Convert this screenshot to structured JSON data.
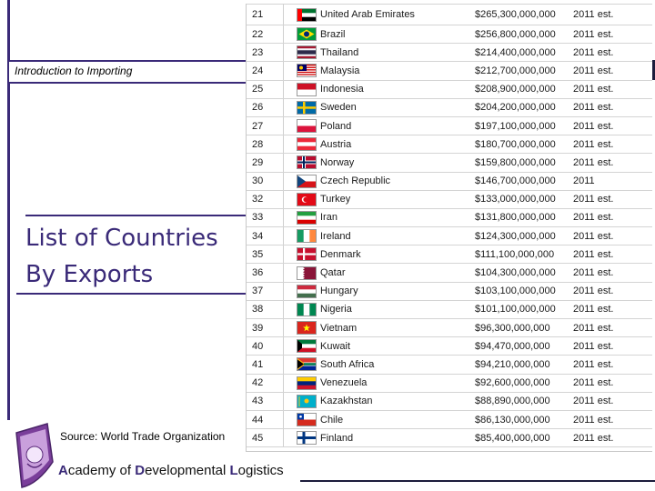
{
  "header": {
    "section_label": "Introduction to Importing"
  },
  "slide": {
    "title_line1": "List of Countries",
    "title_line2": "By Exports",
    "source": "Source: World Trade Organization"
  },
  "footer": {
    "a": "A",
    "cademy": "cademy of ",
    "d": "D",
    "evelopmental": "evelopmental ",
    "l": "L",
    "ogistics": "ogistics"
  },
  "rows": [
    {
      "rank": "21",
      "country": "United Arab Emirates",
      "value": "$265,300,000,000",
      "year": "2011 est.",
      "flag_icon": "uae-flag-icon"
    },
    {
      "rank": "22",
      "country": "Brazil",
      "value": "$256,800,000,000",
      "year": "2011 est.",
      "flag_icon": "brazil-flag-icon"
    },
    {
      "rank": "23",
      "country": "Thailand",
      "value": "$214,400,000,000",
      "year": "2011 est.",
      "flag_icon": "thailand-flag-icon"
    },
    {
      "rank": "24",
      "country": "Malaysia",
      "value": "$212,700,000,000",
      "year": "2011 est.",
      "flag_icon": "malaysia-flag-icon"
    },
    {
      "rank": "25",
      "country": "Indonesia",
      "value": "$208,900,000,000",
      "year": "2011 est.",
      "flag_icon": "indonesia-flag-icon"
    },
    {
      "rank": "26",
      "country": "Sweden",
      "value": "$204,200,000,000",
      "year": "2011 est.",
      "flag_icon": "sweden-flag-icon"
    },
    {
      "rank": "27",
      "country": "Poland",
      "value": "$197,100,000,000",
      "year": "2011 est.",
      "flag_icon": "poland-flag-icon"
    },
    {
      "rank": "28",
      "country": "Austria",
      "value": "$180,700,000,000",
      "year": "2011 est.",
      "flag_icon": "austria-flag-icon"
    },
    {
      "rank": "29",
      "country": "Norway",
      "value": "$159,800,000,000",
      "year": "2011 est.",
      "flag_icon": "norway-flag-icon"
    },
    {
      "rank": "30",
      "country": "Czech Republic",
      "value": "$146,700,000,000",
      "year": "2011",
      "flag_icon": "czech-flag-icon"
    },
    {
      "rank": "32",
      "country": "Turkey",
      "value": "$133,000,000,000",
      "year": "2011 est.",
      "flag_icon": "turkey-flag-icon"
    },
    {
      "rank": "33",
      "country": "Iran",
      "value": "$131,800,000,000",
      "year": "2011 est.",
      "flag_icon": "iran-flag-icon"
    },
    {
      "rank": "34",
      "country": "Ireland",
      "value": "$124,300,000,000",
      "year": "2011 est.",
      "flag_icon": "ireland-flag-icon"
    },
    {
      "rank": "35",
      "country": "Denmark",
      "value": "$111,100,000,000",
      "year": "2011 est.",
      "flag_icon": "denmark-flag-icon"
    },
    {
      "rank": "36",
      "country": "Qatar",
      "value": "$104,300,000,000",
      "year": "2011 est.",
      "flag_icon": "qatar-flag-icon"
    },
    {
      "rank": "37",
      "country": "Hungary",
      "value": "$103,100,000,000",
      "year": "2011 est.",
      "flag_icon": "hungary-flag-icon"
    },
    {
      "rank": "38",
      "country": "Nigeria",
      "value": "$101,100,000,000",
      "year": "2011 est.",
      "flag_icon": "nigeria-flag-icon"
    },
    {
      "rank": "39",
      "country": "Vietnam",
      "value": "$96,300,000,000",
      "year": "2011 est.",
      "flag_icon": "vietnam-flag-icon"
    },
    {
      "rank": "40",
      "country": "Kuwait",
      "value": "$94,470,000,000",
      "year": "2011 est.",
      "flag_icon": "kuwait-flag-icon"
    },
    {
      "rank": "41",
      "country": "South Africa",
      "value": "$94,210,000,000",
      "year": "2011 est.",
      "flag_icon": "south-africa-flag-icon"
    },
    {
      "rank": "42",
      "country": "Venezuela",
      "value": "$92,600,000,000",
      "year": "2011 est.",
      "flag_icon": "venezuela-flag-icon"
    },
    {
      "rank": "43",
      "country": "Kazakhstan",
      "value": "$88,890,000,000",
      "year": "2011 est.",
      "flag_icon": "kazakhstan-flag-icon"
    },
    {
      "rank": "44",
      "country": "Chile",
      "value": "$86,130,000,000",
      "year": "2011 est.",
      "flag_icon": "chile-flag-icon"
    },
    {
      "rank": "45",
      "country": "Finland",
      "value": "$85,400,000,000",
      "year": "2011 est.",
      "flag_icon": "finland-flag-icon"
    }
  ],
  "colors": {
    "accent": "#3a2a78",
    "dark_bar": "#1c1c3c"
  }
}
